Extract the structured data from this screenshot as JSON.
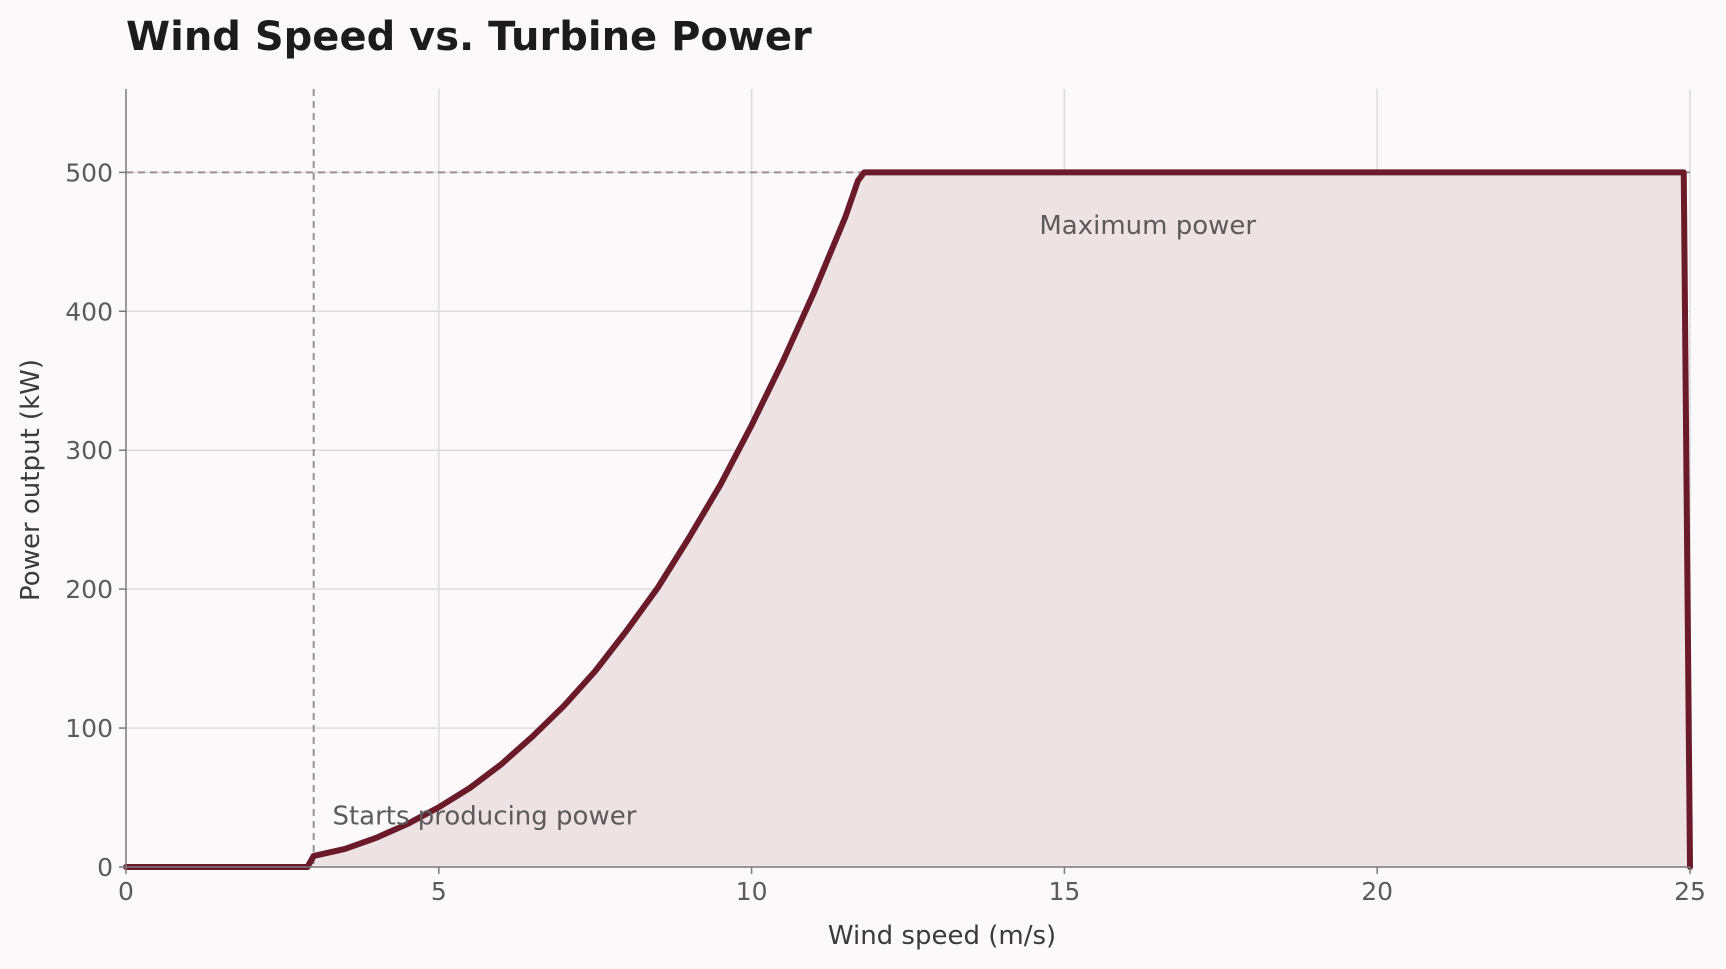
{
  "chart_data": {
    "type": "area",
    "title": "Wind Speed vs. Turbine Power",
    "xlabel": "Wind speed (m/s)",
    "ylabel": "Power output (kW)",
    "xlim": [
      0,
      25
    ],
    "ylim": [
      0,
      560
    ],
    "xticks": [
      0,
      5,
      10,
      15,
      20,
      25
    ],
    "yticks": [
      0,
      100,
      200,
      300,
      400,
      500
    ],
    "grid": true,
    "colors": {
      "line": "#6b1a2a",
      "fill": "#ede2e4"
    },
    "series": [
      {
        "x": [
          0,
          2.9,
          3.0,
          3.5,
          4,
          4.5,
          5,
          5.5,
          6,
          6.5,
          7,
          7.5,
          8,
          8.5,
          9,
          9.5,
          10,
          10.5,
          11,
          11.5,
          11.7,
          11.8,
          12,
          13,
          14,
          15,
          16,
          17,
          18,
          19,
          20,
          21,
          22,
          23,
          24,
          24.9,
          25
        ],
        "y": [
          0,
          0,
          8,
          13,
          21,
          31,
          43,
          57,
          74,
          94,
          116,
          141,
          170,
          201,
          237,
          275,
          318,
          364,
          414,
          468,
          494,
          500,
          500,
          500,
          500,
          500,
          500,
          500,
          500,
          500,
          500,
          500,
          500,
          500,
          500,
          500,
          0
        ]
      }
    ],
    "reference_lines": [
      {
        "axis": "x",
        "value": 3
      },
      {
        "axis": "y",
        "value": 500
      }
    ],
    "annotations": [
      {
        "text": "Starts producing power",
        "x": 3.3,
        "y": 37
      },
      {
        "text": "Maximum power",
        "x": 14.6,
        "y": 462
      }
    ]
  }
}
